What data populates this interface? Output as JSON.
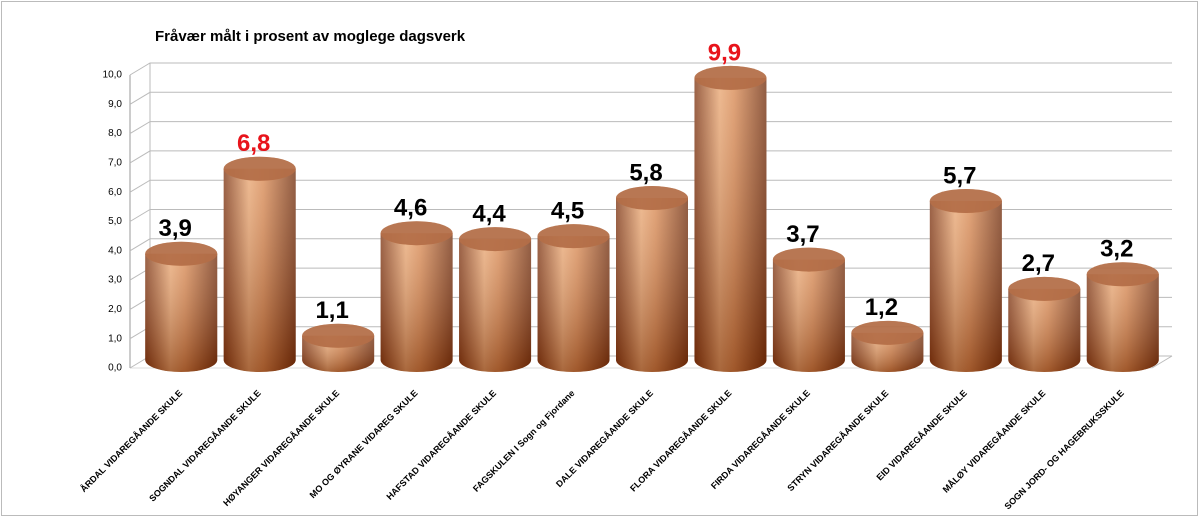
{
  "chart_data": {
    "type": "cylinder-bar",
    "title": "Fråvær målt i prosent av moglege dagsverk",
    "categories": [
      "ÅRDAL VIDAREGÅANDE SKULE",
      "SOGNDAL VIDAREGÅANDE SKULE",
      "HØYANGER VIDAREGÅANDE SKULE",
      "MO OG ØYRANE VIDAREG SKULE",
      "HAFSTAD VIDAREGÅANDE SKULE",
      "FAGSKULEN I Sogn og Fjordane",
      "DALE VIDAREGÅANDE SKULE",
      "FLORA VIDAREGÅANDE SKULE",
      "FIRDA VIDAREGÅANDE SKULE",
      "STRYN VIDAREGÅANDE SKULE",
      "EID VIDAREGÅANDE SKULE",
      "MÅLØY VIDAREGÅANDE SKULE",
      "SOGN JORD- OG HAGEBRUKSSKULE"
    ],
    "values": [
      3.9,
      6.8,
      1.1,
      4.6,
      4.4,
      4.5,
      5.8,
      9.9,
      3.7,
      1.2,
      5.7,
      2.7,
      3.2
    ],
    "value_labels": [
      "3,9",
      "6,8",
      "1,1",
      "4,6",
      "4,4",
      "4,5",
      "5,8",
      "9,9",
      "3,7",
      "1,2",
      "5,7",
      "2,7",
      "3,2"
    ],
    "value_label_colors": [
      "#000000",
      "#e8141b",
      "#000000",
      "#000000",
      "#000000",
      "#000000",
      "#000000",
      "#e8141b",
      "#000000",
      "#000000",
      "#000000",
      "#000000",
      "#000000"
    ],
    "color": "#c8743f",
    "ylim": [
      0,
      10
    ],
    "yticks": [
      {
        "value": 0,
        "label": "0,0"
      },
      {
        "value": 1,
        "label": "1,0"
      },
      {
        "value": 2,
        "label": "2,0"
      },
      {
        "value": 3,
        "label": "3,0"
      },
      {
        "value": 4,
        "label": "4,0"
      },
      {
        "value": 5,
        "label": "5,0"
      },
      {
        "value": 6,
        "label": "6,0"
      },
      {
        "value": 7,
        "label": "7,0"
      },
      {
        "value": 8,
        "label": "8,0"
      },
      {
        "value": 9,
        "label": "9,0"
      },
      {
        "value": 10,
        "label": "10,0"
      }
    ],
    "grid": true
  }
}
